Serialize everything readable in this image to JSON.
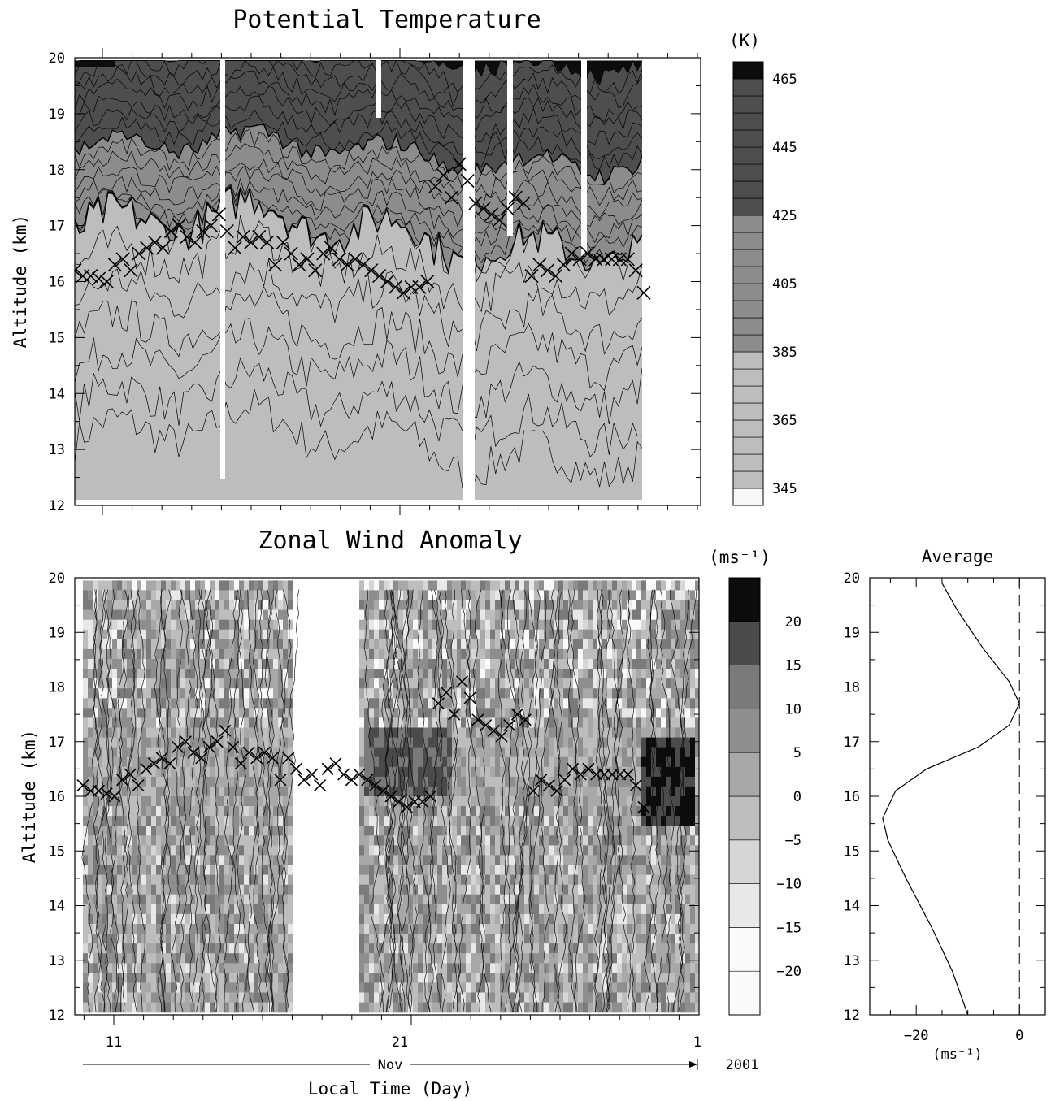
{
  "chart_data": [
    {
      "type": "heatmap",
      "title": "Potential Temperature",
      "ylabel": "Altitude (km)",
      "ylim": [
        12,
        20
      ],
      "yticks": [
        "12",
        "13",
        "14",
        "15",
        "16",
        "17",
        "18",
        "19",
        "20"
      ],
      "colorbar": {
        "unit": "(K)",
        "labels": [
          "465",
          "445",
          "425",
          "405",
          "385",
          "365",
          "345"
        ],
        "levels": [
          345,
          350,
          355,
          360,
          365,
          370,
          375,
          380,
          385,
          390,
          395,
          400,
          405,
          410,
          415,
          420,
          425,
          430,
          435,
          440,
          445,
          450,
          455,
          460,
          465,
          470
        ]
      },
      "cold_point_tropopause_km": [
        16.2,
        16.1,
        16.1,
        16.05,
        16.0,
        16.3,
        16.4,
        16.2,
        16.5,
        16.6,
        16.7,
        16.6,
        16.9,
        17.0,
        16.8,
        16.7,
        16.9,
        17.0,
        17.2,
        16.9,
        16.6,
        16.8,
        16.7,
        16.8,
        16.7,
        16.3,
        16.7,
        16.5,
        16.3,
        16.4,
        16.2,
        16.5,
        16.6,
        16.4,
        16.3,
        16.4,
        16.3,
        16.2,
        16.1,
        16.0,
        15.9,
        15.8,
        15.9,
        15.9,
        16.0,
        17.7,
        17.9,
        17.5,
        18.1,
        17.8,
        17.4,
        17.3,
        17.2,
        17.1,
        17.3,
        17.5,
        17.4,
        16.1,
        16.3,
        16.2,
        16.1,
        16.3,
        16.5,
        16.4,
        16.5,
        16.4,
        16.4,
        16.4,
        16.4,
        16.4,
        16.2,
        15.8
      ]
    },
    {
      "type": "heatmap",
      "title": "Zonal Wind Anomaly",
      "xlabel": "Local Time (Day)",
      "ylabel": "Altitude (km)",
      "ylim": [
        12,
        20
      ],
      "xticks": [
        "11",
        "21",
        "1"
      ],
      "month_label": "Nov",
      "year_label": "2001",
      "yticks": [
        "12",
        "13",
        "14",
        "15",
        "16",
        "17",
        "18",
        "19",
        "20"
      ],
      "colorbar": {
        "unit": "(ms⁻¹)",
        "labels": [
          "20",
          "15",
          "10",
          "5",
          "0",
          "−5",
          "−10",
          "−15",
          "−20"
        ]
      }
    },
    {
      "type": "line",
      "title": "Average",
      "xlabel": "(ms⁻¹)",
      "ylabel": "",
      "xlim": [
        -29,
        5
      ],
      "ylim": [
        12,
        20
      ],
      "xticks": [
        "−20",
        "0"
      ],
      "yticks": [
        "12",
        "13",
        "14",
        "15",
        "16",
        "17",
        "18",
        "19",
        "20"
      ],
      "series": [
        {
          "x": [
            -10,
            -13,
            -17,
            -22,
            -25.5,
            -26.5,
            -24,
            -18,
            -8,
            -2,
            0,
            -2,
            -7,
            -12,
            -15
          ],
          "y": [
            12,
            12.8,
            13.6,
            14.5,
            15.2,
            15.6,
            16.1,
            16.5,
            16.9,
            17.3,
            17.7,
            18.1,
            18.7,
            19.4,
            19.9
          ]
        }
      ]
    }
  ]
}
